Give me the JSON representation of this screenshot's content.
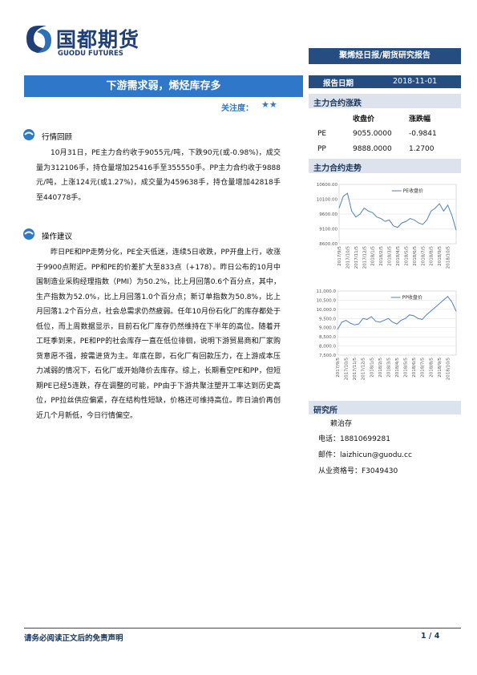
{
  "header": {
    "logo_cn": "国都期货",
    "logo_en": "GUODU FUTURES",
    "banner": "聚烯烃日报/期货研究报告"
  },
  "title": "下游需求弱，烯烃库存多",
  "rating_label": "关注度：",
  "rating": "★★",
  "report_date": {
    "label": "报告日期",
    "value": "2018-11-01"
  },
  "sections": {
    "review": {
      "heading": "行情回顾",
      "text": "10月31日，PE主力合约收于9055元/吨，下跌90元(或-0.98%)，成交量为312106手，持仓量增加25416手至355550手。PP主力合约收于9888元/吨，上涨124元(或1.27%)，成交量为459638手，持仓量增加42818手至440778手。"
    },
    "advice": {
      "heading": "操作建议",
      "text": "昨日PE和PP走势分化，PE全天低迷，连续5日收跌，PP开盘上行，收涨于9900点附近。PP和PE的价差扩大至833点（+178）。昨日公布的10月中国制造业采购经理指数（PMI）为50.2%，比上月回落0.6个百分点，其中，生产指数为52.0%，比上月回落1.0个百分点；新订单指数为50.8%，比上月回落1.2个百分点，社会总需求仍然疲弱。任年10月份石化厂的库存都处于低位，而上周数据显示，目前石化厂库存仍然维持在下半年的高位。随着开工旺季到来，PE和PP的社会库存一直在低位徘徊，说明下游贸易商和厂家购货意愿不强，按需进货为主。年底在即，石化厂有回款压力，在上游成本压力减弱的情况下，石化厂或开始降价去库存。综上，长期看空PE和PP，但短期PE已经5连跌，存在调整的可能，PP由于下游共聚注塑开工率达到历史高位，PP拉丝供应偏紧，存在结构性短缺，价格还可维持高位。昨日油价再创近几个月新低，今日行情偏空。"
    }
  },
  "table": {
    "heading": "主力合约涨跌",
    "headers": [
      "收盘价",
      "涨跌幅"
    ],
    "rows": [
      [
        "PE",
        "9055.0000",
        "-0.9841"
      ],
      [
        "PP",
        "9888.0000",
        "1.2700"
      ]
    ]
  },
  "trend_heading": "主力合约走势",
  "chart_data": [
    {
      "type": "line",
      "categories": [
        "2017/9/5",
        null,
        "2017/10/5",
        null,
        "2017/11/5",
        null,
        "2017/12/5",
        null,
        "2018/1/5",
        null,
        "2018/2/5",
        null,
        "2018/3/5",
        null,
        "2018/4/5",
        null,
        "2018/5/5",
        null,
        "2018/6/5",
        null,
        "2018/7/5",
        null,
        "2018/8/5",
        null,
        "2018/9/5",
        null,
        "2018/10/5",
        null,
        null
      ],
      "series": [
        {
          "name": "PE收盘价",
          "color": "#4f81bd",
          "values": [
            9800,
            10200,
            10300,
            9700,
            9500,
            9600,
            9800,
            9700,
            9650,
            9500,
            9450,
            9350,
            9400,
            9200,
            9150,
            9300,
            9350,
            9450,
            9400,
            9300,
            9250,
            9400,
            9700,
            9800,
            9950,
            9700,
            9900,
            9550,
            9055
          ]
        }
      ],
      "ylim": [
        8600,
        10600
      ],
      "yticks": [
        {
          "value": 8600,
          "label": "8600.00"
        },
        {
          "value": 9100,
          "label": "9100.00"
        },
        {
          "value": 9600,
          "label": "9600.00"
        },
        {
          "value": 10100,
          "label": "10100.00"
        },
        {
          "value": 10600,
          "label": "10600.00"
        }
      ]
    },
    {
      "type": "line",
      "categories": [
        "2017/9/5",
        null,
        "2017/10/5",
        null,
        "2017/11/5",
        null,
        "2017/12/5",
        null,
        "2018/1/5",
        null,
        "2018/2/5",
        null,
        "2018/3/5",
        null,
        "2018/4/5",
        null,
        "2018/5/5",
        null,
        "2018/6/5",
        null,
        "2018/7/5",
        null,
        "2018/8/5",
        null,
        "2018/9/5",
        null,
        "2018/10/5",
        null,
        null
      ],
      "series": [
        {
          "name": "PP收盘价",
          "color": "#4f81bd",
          "values": [
            8900,
            9300,
            9400,
            9250,
            9150,
            9200,
            9500,
            9450,
            9600,
            9350,
            9300,
            9400,
            9500,
            9300,
            9200,
            9400,
            9500,
            9700,
            9650,
            9500,
            9450,
            9700,
            9900,
            10100,
            10300,
            10500,
            10700,
            10400,
            9888
          ]
        }
      ],
      "ylim": [
        7500,
        11000
      ],
      "yticks": [
        {
          "value": 7500,
          "label": "7,500.0"
        },
        {
          "value": 8000,
          "label": "8,000.0"
        },
        {
          "value": 8500,
          "label": "8,500.0"
        },
        {
          "value": 9000,
          "label": "9,000.0"
        },
        {
          "value": 9500,
          "label": "9,500.0"
        },
        {
          "value": 10000,
          "label": "10,000.0"
        },
        {
          "value": 10500,
          "label": "10,500.0"
        },
        {
          "value": 11000,
          "label": "11,000.0"
        }
      ]
    }
  ],
  "research": {
    "heading": "研究所",
    "name": "赖治存",
    "phone": "电话：18810699281",
    "email": "邮件：laizhicun@guodu.cc",
    "license": "从业资格号：F3049430"
  },
  "footer": {
    "disclaimer": "请务必阅读正文后的免责声明",
    "page": "1 / 4"
  }
}
